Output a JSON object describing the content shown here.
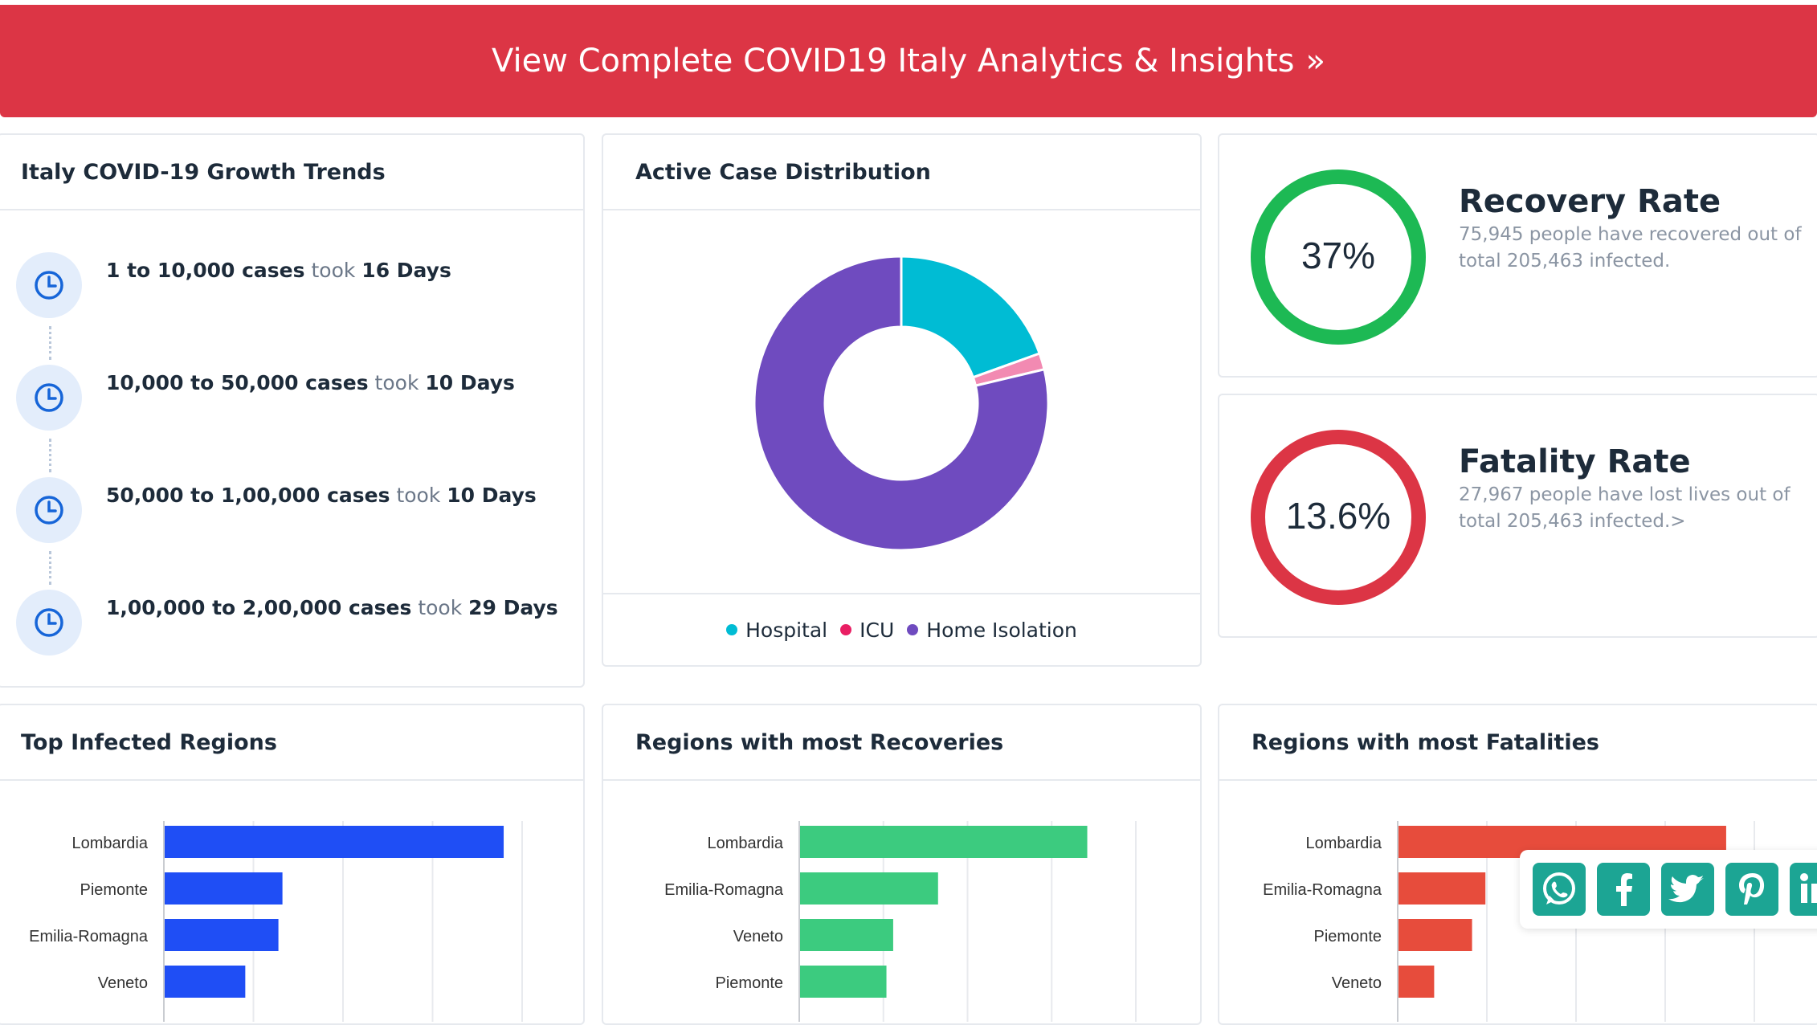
{
  "banner": {
    "label": "View Complete COVID19 Italy Analytics & Insights",
    "chevron": "»"
  },
  "growth": {
    "title": "Italy COVID-19 Growth Trends",
    "items": [
      {
        "range": "1 to 10,000 cases",
        "took": "took",
        "days": "16 Days"
      },
      {
        "range": "10,000 to 50,000 cases",
        "took": "took",
        "days": "10 Days"
      },
      {
        "range": "50,000 to 1,00,000 cases",
        "took": "took",
        "days": "10 Days"
      },
      {
        "range": "1,00,000 to 2,00,000 cases",
        "took": "took",
        "days": "29 Days"
      }
    ]
  },
  "active": {
    "title": "Active Case Distribution",
    "legend": [
      "Hospital",
      "ICU",
      "Home Isolation"
    ]
  },
  "recovery": {
    "title": "Recovery Rate",
    "value": "37%",
    "percent": 37,
    "desc": "75,945 people have recovered out of total 205,463 infected.",
    "color": "#1db954"
  },
  "fatality": {
    "title": "Fatality Rate",
    "value": "13.6%",
    "percent": 13.6,
    "desc": "27,967 people have lost lives out of total 205,463 infected.>",
    "color": "#dc3545"
  },
  "panels": {
    "infected_title": "Top Infected Regions",
    "recoveries_title": "Regions with most Recoveries",
    "fatalities_title": "Regions with most Fatalities"
  },
  "share_icons": [
    "whatsapp-icon",
    "facebook-icon",
    "twitter-icon",
    "pinterest-icon",
    "linkedin-icon"
  ],
  "colors": {
    "hospital": "#00bcd4",
    "icu": "#e91e63",
    "home": "#6f4bbf",
    "infected_bar": "#1f4ef5",
    "recovered_bar": "#3ccb7f",
    "fatal_bar": "#e74c3c"
  },
  "chart_data": [
    {
      "type": "pie",
      "title": "Active Case Distribution",
      "categories": [
        "Hospital",
        "ICU",
        "Home Isolation"
      ],
      "values": [
        19.5,
        1.8,
        78.7
      ],
      "legend": "bottom"
    },
    {
      "type": "bar",
      "title": "Top Infected Regions",
      "categories": [
        "Lombardia",
        "Piemonte",
        "Emilia-Romagna",
        "Veneto"
      ],
      "values": [
        75700,
        26300,
        25400,
        18000
      ],
      "xlim": [
        0,
        80000
      ]
    },
    {
      "type": "bar",
      "title": "Regions with most Recoveries",
      "categories": [
        "Lombardia",
        "Emilia-Romagna",
        "Veneto",
        "Piemonte"
      ],
      "values": [
        25600,
        12300,
        8300,
        7700
      ],
      "xlim": [
        0,
        30000
      ]
    },
    {
      "type": "bar",
      "title": "Regions with most Fatalities",
      "categories": [
        "Lombardia",
        "Emilia-Romagna",
        "Piemonte",
        "Veneto"
      ],
      "values": [
        14700,
        3900,
        3300,
        1600
      ],
      "xlim": [
        0,
        16000
      ]
    }
  ]
}
